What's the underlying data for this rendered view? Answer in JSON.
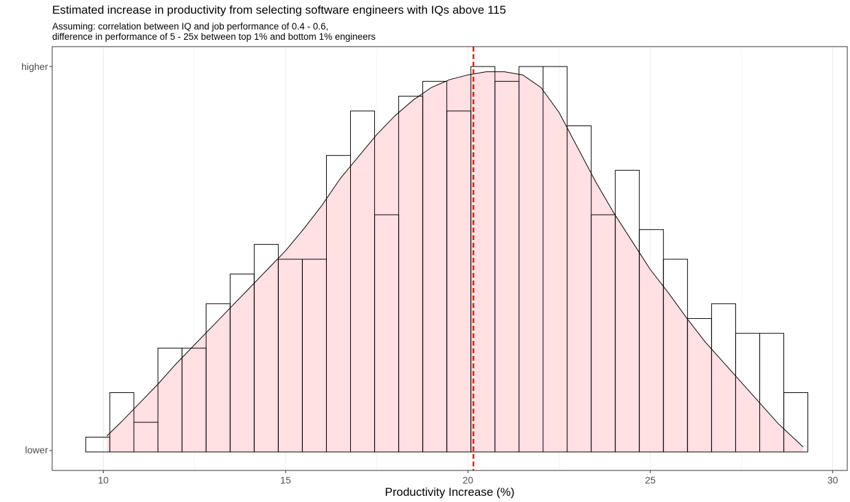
{
  "chart_data": {
    "type": "bar",
    "title": "Estimated increase in productivity from selecting software engineers with IQs above 115",
    "subtitle_lines": [
      "Assuming: correlation between IQ and job performance of 0.4 - 0.6,",
      "difference in performance of 5 - 25x between top 1% and bottom 1% engineers"
    ],
    "xlabel": "Productivity Increase (%)",
    "ylabel": "",
    "y_tick_labels": {
      "low": "lower",
      "high": "higher"
    },
    "xlim": [
      8.6,
      30.4
    ],
    "ylim": [
      0,
      27
    ],
    "x_ticks": [
      10,
      15,
      20,
      25,
      30
    ],
    "grid": "vertical",
    "histogram": {
      "bin_width": 0.66,
      "bin_centers": [
        9.85,
        10.51,
        11.17,
        11.83,
        12.49,
        13.15,
        13.81,
        14.47,
        15.13,
        15.79,
        16.45,
        17.11,
        17.77,
        18.43,
        19.09,
        19.75,
        20.41,
        21.07,
        21.73,
        22.39,
        23.05,
        23.71,
        24.37,
        25.03,
        25.69,
        26.35,
        27.01,
        27.67,
        28.33,
        28.99
      ],
      "counts": [
        1,
        4,
        2,
        7,
        7,
        10,
        12,
        14,
        13,
        13,
        20,
        23,
        16,
        24,
        25,
        23,
        26,
        25,
        26,
        26,
        22,
        16,
        19,
        15,
        13,
        9,
        10,
        8,
        8,
        4
      ]
    },
    "density": {
      "x": [
        10.1,
        10.5,
        11.0,
        11.5,
        12.0,
        12.5,
        13.0,
        13.5,
        14.0,
        14.5,
        15.0,
        15.5,
        16.0,
        16.5,
        17.0,
        17.5,
        18.0,
        18.5,
        19.0,
        19.5,
        20.0,
        20.5,
        21.0,
        21.5,
        22.0,
        22.5,
        23.0,
        23.5,
        24.0,
        24.5,
        25.0,
        25.5,
        26.0,
        26.5,
        27.0,
        27.5,
        28.0,
        28.5,
        29.19
      ],
      "y": [
        2.2,
        3.1,
        4.3,
        5.5,
        6.8,
        8.0,
        9.2,
        10.4,
        11.6,
        12.8,
        14.0,
        15.4,
        16.9,
        18.6,
        20.0,
        21.4,
        22.6,
        23.6,
        24.4,
        24.9,
        25.2,
        25.4,
        25.4,
        25.2,
        24.4,
        22.8,
        20.6,
        18.4,
        16.4,
        14.6,
        12.8,
        11.3,
        9.7,
        8.2,
        6.9,
        5.6,
        4.3,
        3.0,
        1.5
      ],
      "fill": "#FFE0E3",
      "line_color": "#000000"
    },
    "mean_line": {
      "x": 20.15,
      "color": "#E00000",
      "style": "dashed"
    }
  }
}
